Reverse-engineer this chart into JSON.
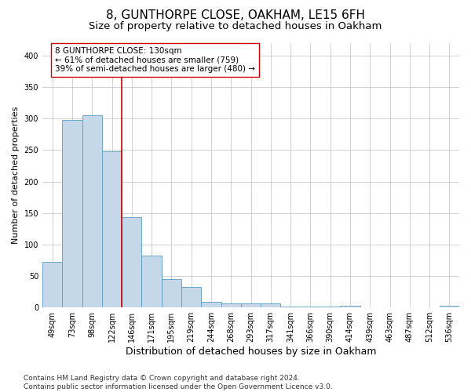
{
  "title1": "8, GUNTHORPE CLOSE, OAKHAM, LE15 6FH",
  "title2": "Size of property relative to detached houses in Oakham",
  "xlabel": "Distribution of detached houses by size in Oakham",
  "ylabel": "Number of detached properties",
  "categories": [
    "49sqm",
    "73sqm",
    "98sqm",
    "122sqm",
    "146sqm",
    "171sqm",
    "195sqm",
    "219sqm",
    "244sqm",
    "268sqm",
    "293sqm",
    "317sqm",
    "341sqm",
    "366sqm",
    "390sqm",
    "414sqm",
    "439sqm",
    "463sqm",
    "487sqm",
    "512sqm",
    "536sqm"
  ],
  "values": [
    72,
    298,
    305,
    248,
    143,
    83,
    45,
    33,
    9,
    6,
    6,
    6,
    1,
    1,
    1,
    3,
    0,
    0,
    0,
    0,
    3
  ],
  "bar_color": "#c5d8ea",
  "bar_edge_color": "#5a9abf",
  "grid_color": "#c8c8d0",
  "annotation_box_color": "#ffffff",
  "annotation_border_color": "#cc0000",
  "vline_color": "#cc0000",
  "vline_x": 3.5,
  "ylim": [
    0,
    420
  ],
  "annotation_line1": "8 GUNTHORPE CLOSE: 130sqm",
  "annotation_line2": "← 61% of detached houses are smaller (759)",
  "annotation_line3": "39% of semi-detached houses are larger (480) →",
  "footer": "Contains HM Land Registry data © Crown copyright and database right 2024.\nContains public sector information licensed under the Open Government Licence v3.0.",
  "title1_fontsize": 11,
  "title2_fontsize": 9.5,
  "xlabel_fontsize": 9,
  "ylabel_fontsize": 8,
  "tick_fontsize": 7,
  "annotation_fontsize": 7.5,
  "footer_fontsize": 6.5
}
